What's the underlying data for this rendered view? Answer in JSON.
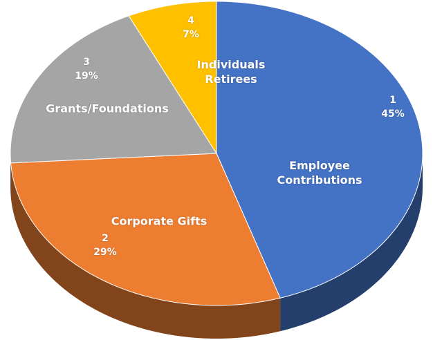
{
  "chart_data": {
    "type": "pie",
    "categories": [
      "Employee Contributions",
      "Corporate Gifts",
      "Grants/Foundations",
      "Individuals Retirees"
    ],
    "ranks": [
      1,
      2,
      3,
      4
    ],
    "values": [
      45,
      29,
      19,
      7
    ],
    "value_labels": [
      "45%",
      "29%",
      "19%",
      "7%"
    ],
    "colors": [
      "#4472c4",
      "#ed7d31",
      "#a5a5a5",
      "#ffc000"
    ],
    "three_d": true
  }
}
